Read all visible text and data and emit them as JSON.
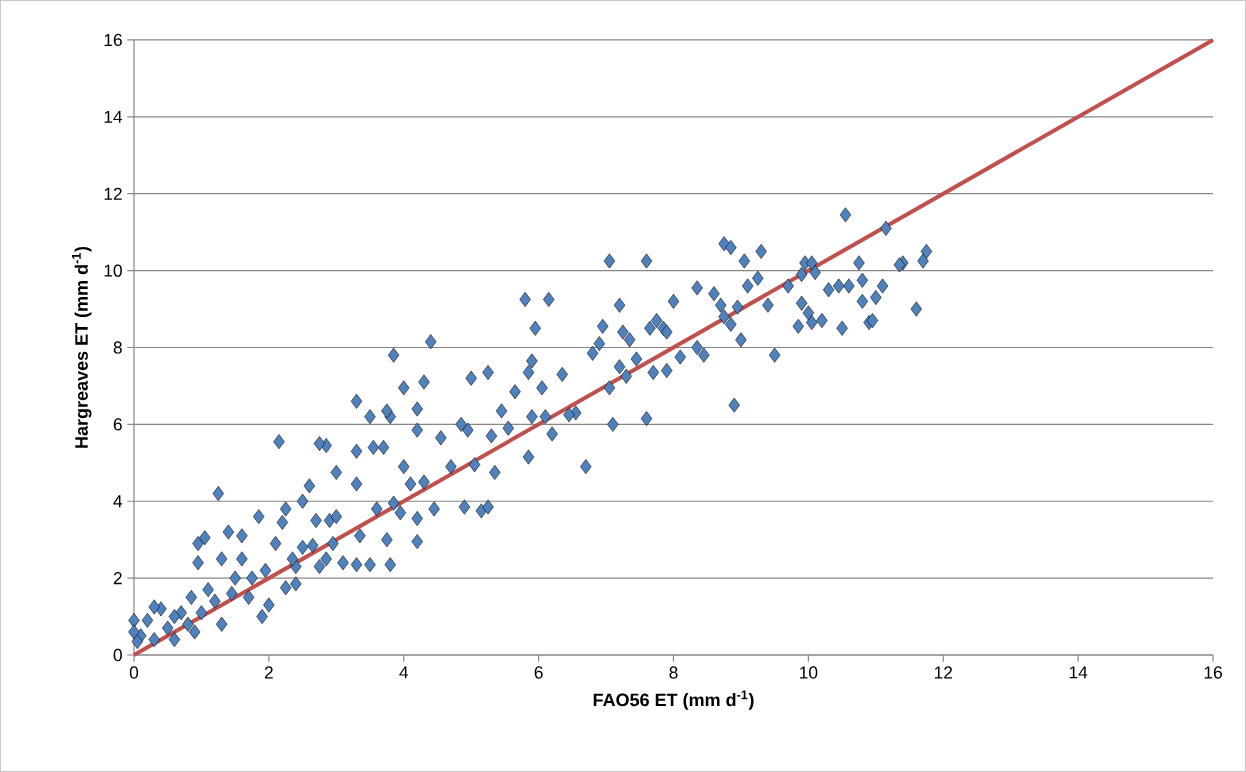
{
  "chart_data": {
    "type": "scatter",
    "xlabel": "FAO56 ET (mm d$^{-1}$)",
    "ylabel": "Hargreaves ET (mm d$^{-1}$)",
    "xlim": [
      0,
      16
    ],
    "ylim": [
      0,
      16
    ],
    "xticks": [
      0,
      2,
      4,
      6,
      8,
      10,
      12,
      14,
      16
    ],
    "yticks": [
      0,
      2,
      4,
      6,
      8,
      10,
      12,
      14,
      16
    ],
    "grid": "y",
    "series": [
      {
        "color": "#4f81bd",
        "marker": "diamond",
        "x": [
          10.55,
          11.15,
          11.75,
          11.7,
          11.4,
          11.35,
          8.75,
          8.85,
          9.3,
          7.05,
          7.6,
          9.05,
          9.95,
          10.05,
          10.75,
          10.1,
          9.9,
          10.3,
          10.45,
          10.6,
          10.8,
          11.1,
          11.0,
          10.8,
          9.7,
          9.25,
          9.1,
          8.6,
          8.35,
          8.7,
          8.95,
          9.4,
          9.9,
          10.0,
          9.85,
          10.05,
          10.2,
          10.5,
          10.9,
          10.95,
          11.6,
          9.5,
          8.9,
          9.0,
          8.85,
          8.75,
          8.45,
          8.35,
          8.0,
          7.85,
          7.75,
          7.9,
          7.65,
          7.2,
          6.95,
          7.25,
          7.35,
          7.45,
          7.2,
          7.3,
          7.05,
          7.1,
          7.6,
          7.7,
          7.9,
          8.1,
          6.8,
          6.9,
          6.7,
          6.55,
          6.45,
          6.2,
          6.1,
          6.35,
          6.05,
          5.95,
          5.8,
          6.15,
          5.9,
          5.85,
          5.65,
          5.55,
          5.85,
          5.9,
          5.45,
          5.25,
          5.0,
          5.3,
          5.35,
          5.15,
          5.25,
          5.05,
          4.95,
          4.85,
          4.7,
          4.9,
          4.55,
          4.4,
          3.85,
          4.3,
          4.0,
          4.2,
          3.8,
          3.3,
          3.75,
          3.5,
          3.55,
          3.7,
          4.2,
          4.0,
          4.1,
          4.3,
          4.45,
          4.2,
          4.2,
          3.95,
          3.85,
          3.6,
          3.75,
          3.8,
          3.35,
          3.5,
          3.3,
          3.3,
          3.3,
          3.0,
          2.85,
          2.75,
          2.6,
          2.7,
          2.9,
          3.0,
          2.85,
          2.95,
          2.15,
          2.25,
          2.2,
          2.5,
          2.5,
          2.4,
          2.25,
          2.4,
          2.0,
          1.9,
          1.85,
          1.6,
          1.4,
          1.25,
          1.05,
          0.95,
          0.95,
          1.3,
          1.6,
          1.75,
          1.45,
          1.3,
          1.1,
          1.2,
          0.85,
          0.7,
          0.9,
          0.6,
          0.5,
          0.4,
          0.3,
          0.2,
          0.1,
          0.0,
          0.0,
          0.05,
          0.3,
          0.6,
          0.8,
          1.0,
          1.5,
          1.7,
          1.95,
          2.1,
          2.35,
          2.65,
          2.75,
          3.1
        ],
        "values": [
          11.45,
          11.1,
          10.5,
          10.25,
          10.2,
          10.15,
          10.7,
          10.6,
          10.5,
          10.25,
          10.25,
          10.25,
          10.2,
          10.2,
          10.2,
          9.95,
          9.9,
          9.5,
          9.6,
          9.6,
          9.75,
          9.6,
          9.3,
          9.2,
          9.6,
          9.8,
          9.6,
          9.4,
          9.55,
          9.1,
          9.05,
          9.1,
          9.15,
          8.9,
          8.55,
          8.65,
          8.7,
          8.5,
          8.65,
          8.7,
          9.0,
          7.8,
          6.5,
          8.2,
          8.6,
          8.8,
          7.8,
          8.0,
          9.2,
          8.5,
          8.7,
          8.4,
          8.5,
          9.1,
          8.55,
          8.4,
          8.2,
          7.7,
          7.5,
          7.25,
          6.95,
          6.0,
          6.15,
          7.35,
          7.4,
          7.75,
          7.85,
          8.1,
          4.9,
          6.3,
          6.25,
          5.75,
          6.2,
          7.3,
          6.95,
          8.5,
          9.25,
          9.25,
          7.65,
          7.35,
          6.85,
          5.9,
          5.15,
          6.2,
          6.35,
          7.35,
          7.2,
          5.7,
          4.75,
          3.75,
          3.85,
          4.95,
          5.85,
          6.0,
          4.9,
          3.85,
          5.65,
          8.15,
          7.8,
          7.1,
          6.95,
          6.4,
          6.2,
          6.6,
          6.35,
          6.2,
          5.4,
          5.4,
          5.85,
          4.9,
          4.45,
          4.5,
          3.8,
          3.55,
          2.95,
          3.7,
          3.95,
          3.8,
          3.0,
          2.35,
          3.1,
          2.35,
          2.35,
          4.45,
          5.3,
          4.75,
          5.45,
          5.5,
          4.4,
          3.5,
          3.5,
          3.6,
          2.5,
          2.9,
          5.55,
          3.8,
          3.45,
          4.0,
          2.8,
          2.3,
          1.75,
          1.85,
          1.3,
          1.0,
          3.6,
          3.1,
          3.2,
          4.2,
          3.05,
          2.9,
          2.4,
          2.5,
          2.5,
          2.0,
          1.6,
          0.8,
          1.7,
          1.4,
          1.5,
          1.1,
          0.6,
          0.4,
          0.7,
          1.2,
          1.25,
          0.9,
          0.5,
          0.9,
          0.6,
          0.35,
          0.4,
          1.0,
          0.8,
          1.1,
          2.0,
          1.5,
          2.2,
          2.9,
          2.5,
          2.85,
          2.3,
          2.4
        ]
      },
      {
        "type": "line",
        "color": "#c0504d",
        "marker": "none",
        "x": [
          0,
          16
        ],
        "values": [
          0,
          16
        ]
      }
    ]
  }
}
